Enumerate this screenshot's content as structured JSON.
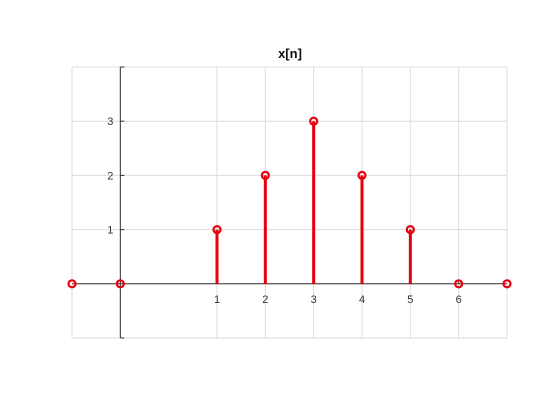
{
  "chart_data": {
    "type": "stem",
    "title": "x[n]",
    "xlabel": "",
    "ylabel": "",
    "xlim": [
      -2,
      6
    ],
    "ylim": [
      -1,
      4
    ],
    "x_ticks": [
      1,
      2,
      3,
      4,
      5,
      6
    ],
    "y_ticks": [
      1,
      2,
      3
    ],
    "grid": true,
    "series": [
      {
        "x": [
          -2,
          -1,
          1,
          2,
          3,
          4,
          5,
          6,
          7
        ],
        "values": [
          0,
          0,
          1,
          2,
          3,
          2,
          1,
          0,
          0
        ]
      }
    ],
    "colors": {
      "stem": "#e8000b",
      "grid": "#dcdcdc",
      "axis": "#333333"
    }
  }
}
